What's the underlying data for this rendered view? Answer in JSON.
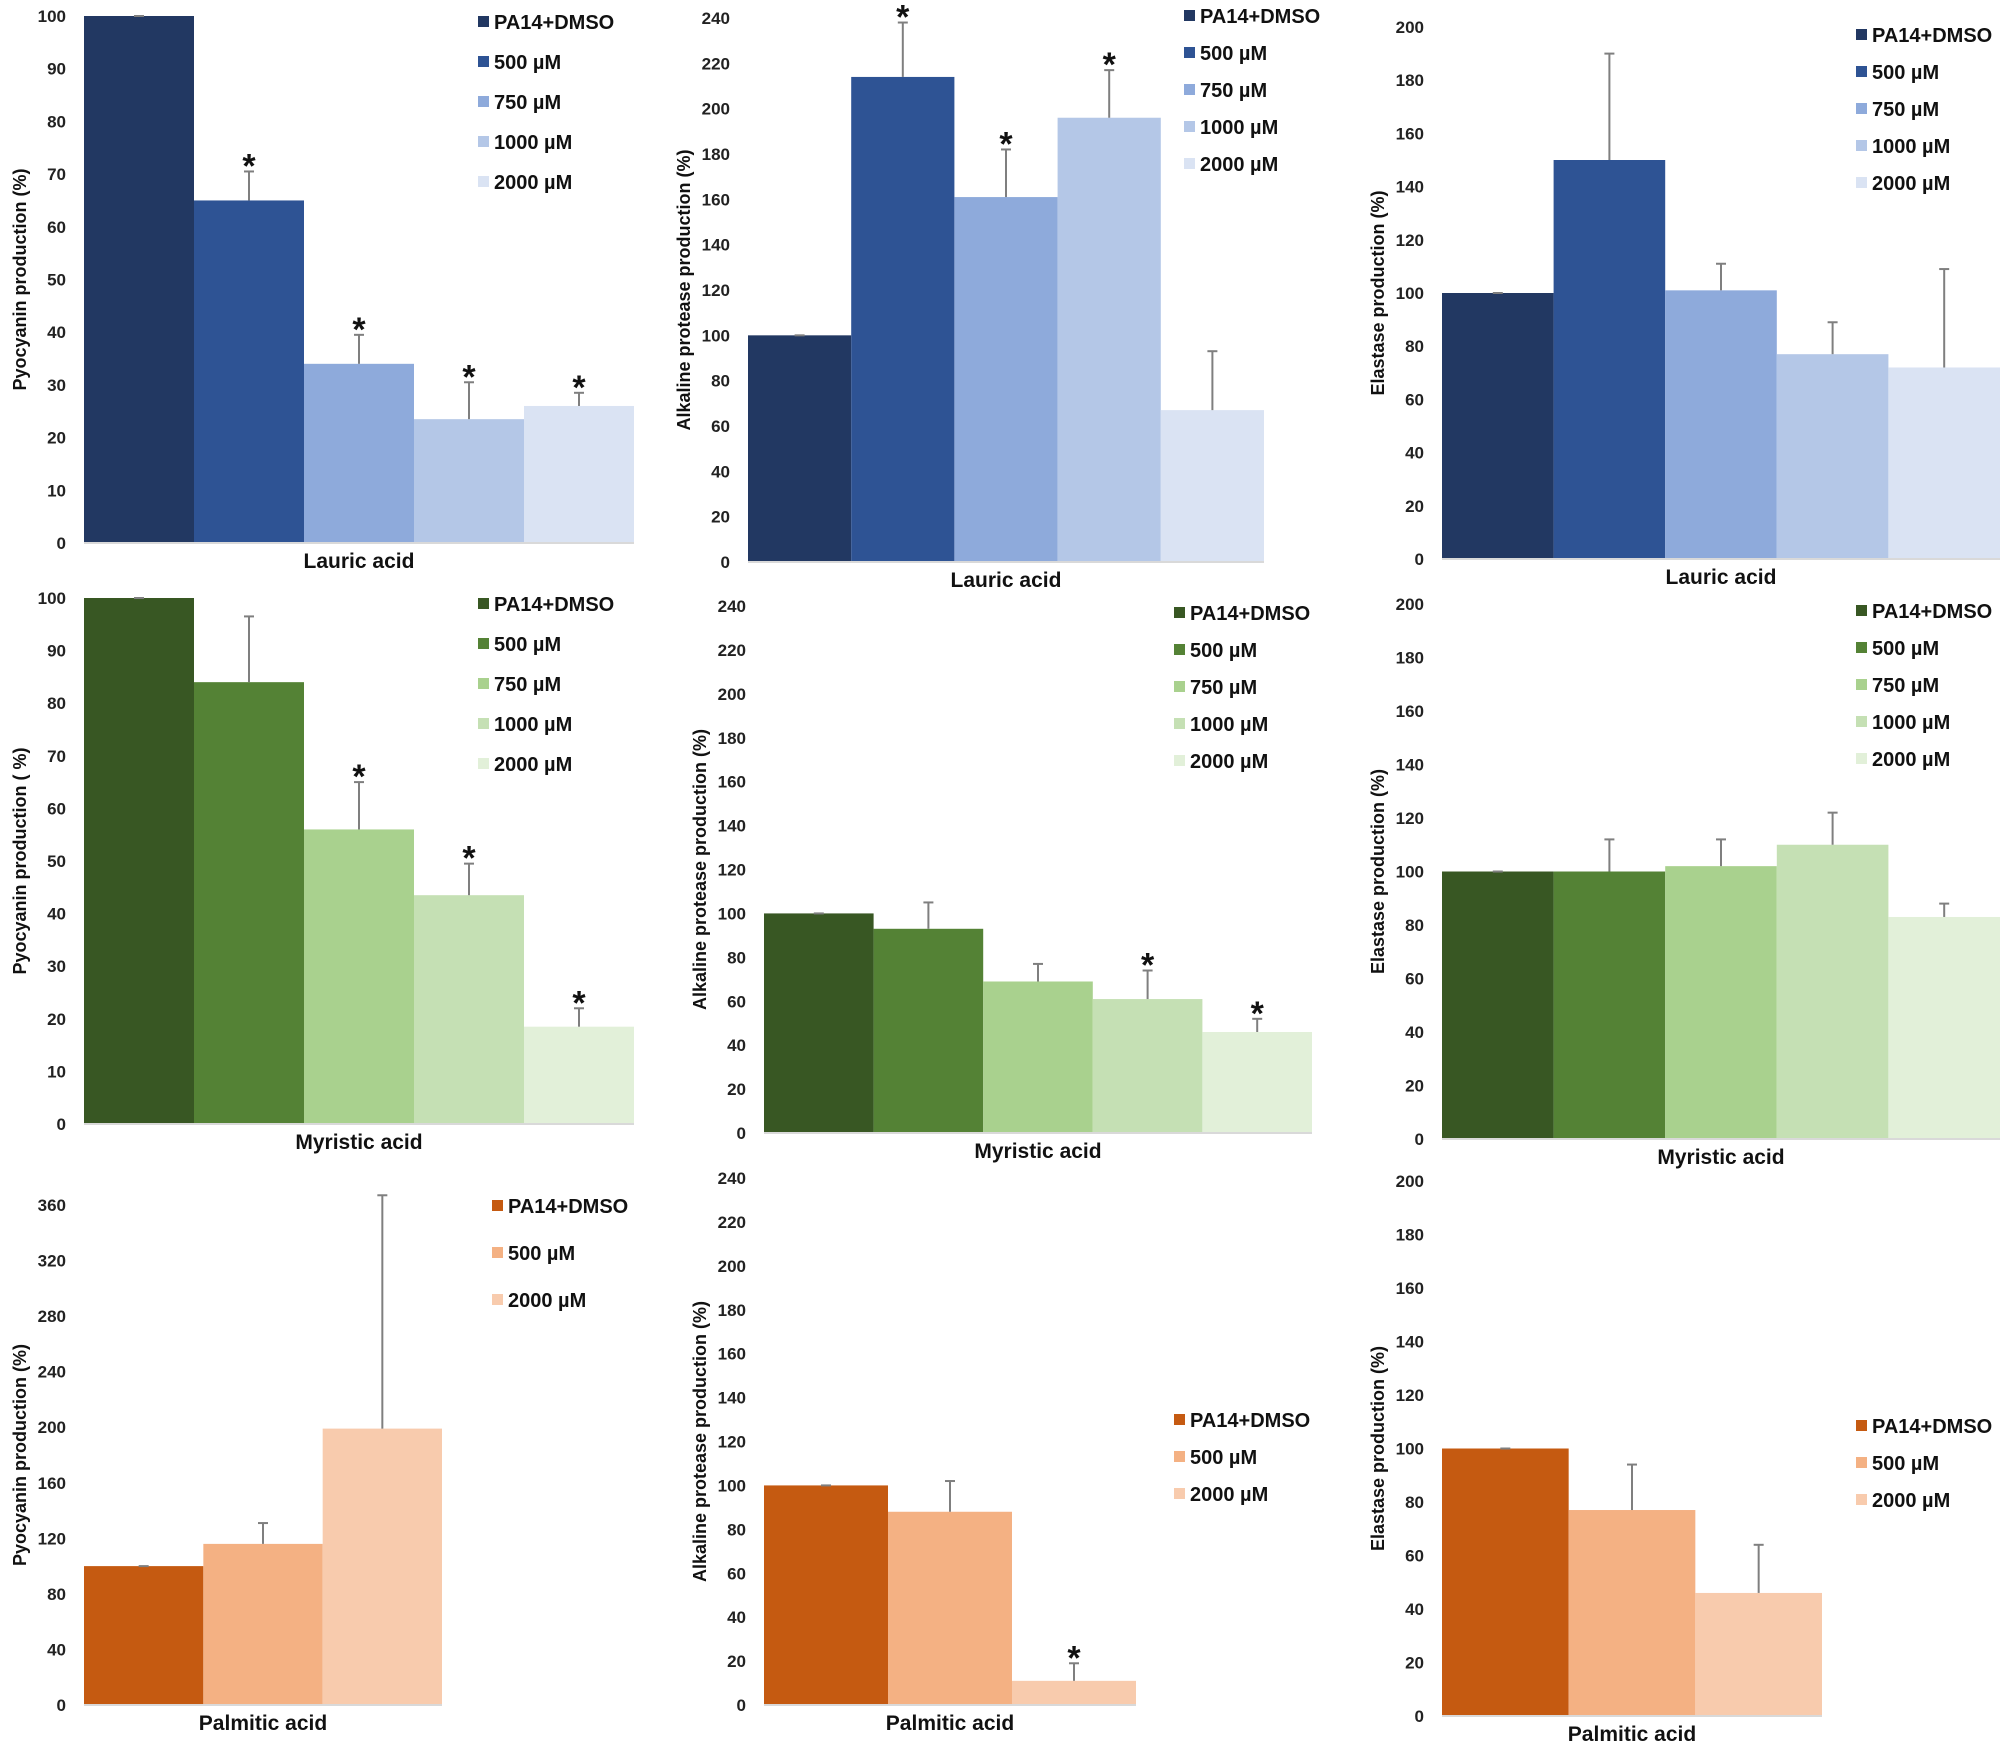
{
  "colors": {
    "blue": [
      "#223862",
      "#2e5394",
      "#8eaadb",
      "#b4c7e7",
      "#dae3f3"
    ],
    "green": [
      "#385723",
      "#548235",
      "#a9d18e",
      "#c5e0b4",
      "#e2f0d9"
    ],
    "orange": [
      "#c55a11",
      "#f4b183",
      "#f8cbad"
    ]
  },
  "chart_data": [
    {
      "type": "bar",
      "title": "",
      "ylabel": "Pyocyanin production (%)",
      "xlabel": "Lauric acid",
      "ylim": [
        0,
        100
      ],
      "yticks": [
        0,
        10,
        20,
        30,
        40,
        50,
        60,
        70,
        80,
        90,
        100
      ],
      "palette": "blue",
      "legend": [
        "PA14+DMSO",
        "500 µM",
        "750 µM",
        "1000 µM",
        "2000 µM"
      ],
      "values": [
        100,
        65,
        34,
        23.5,
        26
      ],
      "errors": [
        0,
        5.5,
        5.5,
        7,
        2.5
      ],
      "significance": [
        "",
        "*",
        "*",
        "*",
        "*"
      ]
    },
    {
      "type": "bar",
      "title": "",
      "ylabel": "Alkaline protease production (%)",
      "xlabel": "Lauric acid",
      "ylim": [
        0,
        240
      ],
      "yticks": [
        0,
        20,
        40,
        60,
        80,
        100,
        120,
        140,
        160,
        180,
        200,
        220,
        240
      ],
      "palette": "blue",
      "legend": [
        "PA14+DMSO",
        "500 µM",
        "750 µM",
        "1000 µM",
        "2000 µM"
      ],
      "values": [
        100,
        214,
        161,
        196,
        67
      ],
      "errors": [
        0,
        24,
        21,
        21,
        26
      ],
      "significance": [
        "",
        "*",
        "*",
        "*",
        ""
      ]
    },
    {
      "type": "bar",
      "title": "",
      "ylabel": "Elastase production (%)",
      "xlabel": "Lauric acid",
      "ylim": [
        0,
        200
      ],
      "yticks": [
        0,
        20,
        40,
        60,
        80,
        100,
        120,
        140,
        160,
        180,
        200
      ],
      "palette": "blue",
      "legend": [
        "PA14+DMSO",
        "500 µM",
        "750 µM",
        "1000 µM",
        "2000 µM"
      ],
      "values": [
        100,
        150,
        101,
        77,
        72
      ],
      "errors": [
        0,
        40,
        10,
        12,
        37
      ],
      "significance": [
        "",
        "",
        "",
        "",
        ""
      ]
    },
    {
      "type": "bar",
      "title": "",
      "ylabel": "Pyocyanin production ( %)",
      "xlabel": "Myristic acid",
      "ylim": [
        0,
        100
      ],
      "yticks": [
        0,
        10,
        20,
        30,
        40,
        50,
        60,
        70,
        80,
        90,
        100
      ],
      "palette": "green",
      "legend": [
        "PA14+DMSO",
        "500 µM",
        "750 µM",
        "1000 µM",
        "2000 µM"
      ],
      "values": [
        100,
        84,
        56,
        43.5,
        18.5
      ],
      "errors": [
        0,
        12.5,
        9,
        6,
        3.5
      ],
      "significance": [
        "",
        "",
        "*",
        "*",
        "*"
      ]
    },
    {
      "type": "bar",
      "title": "",
      "ylabel": "Alkaline protease production (%)",
      "xlabel": "Myristic acid",
      "ylim": [
        0,
        240
      ],
      "yticks": [
        0,
        20,
        40,
        60,
        80,
        100,
        120,
        140,
        160,
        180,
        200,
        220,
        240
      ],
      "palette": "green",
      "legend": [
        "PA14+DMSO",
        "500 µM",
        "750 µM",
        "1000 µM",
        "2000 µM"
      ],
      "values": [
        100,
        93,
        69,
        61,
        46
      ],
      "errors": [
        0,
        12,
        8,
        13,
        6
      ],
      "significance": [
        "",
        "",
        "",
        "*",
        "*"
      ]
    },
    {
      "type": "bar",
      "title": "",
      "ylabel": "Elastase production (%)",
      "xlabel": "Myristic acid",
      "ylim": [
        0,
        200
      ],
      "yticks": [
        0,
        20,
        40,
        60,
        80,
        100,
        120,
        140,
        160,
        180,
        200
      ],
      "palette": "green",
      "legend": [
        "PA14+DMSO",
        "500 µM",
        "750 µM",
        "1000 µM",
        "2000 µM"
      ],
      "values": [
        100,
        100,
        102,
        110,
        83
      ],
      "errors": [
        0,
        12,
        10,
        12,
        5
      ],
      "significance": [
        "",
        "",
        "",
        "",
        ""
      ]
    },
    {
      "type": "bar",
      "title": "",
      "ylabel": "Pyocyanin production (%)",
      "xlabel": "Palmitic acid",
      "ylim": [
        0,
        360
      ],
      "yticks": [
        0,
        40,
        80,
        120,
        160,
        200,
        240,
        280,
        320,
        360
      ],
      "palette": "orange",
      "legend": [
        "PA14+DMSO",
        "500 µM",
        "2000 µM"
      ],
      "values": [
        100,
        116,
        199
      ],
      "errors": [
        0,
        15,
        168
      ],
      "significance": [
        "",
        "",
        ""
      ]
    },
    {
      "type": "bar",
      "title": "",
      "ylabel": "Alkaline protease production (%)",
      "xlabel": "Palmitic acid",
      "ylim": [
        0,
        240
      ],
      "yticks": [
        0,
        20,
        40,
        60,
        80,
        100,
        120,
        140,
        160,
        180,
        200,
        220,
        240
      ],
      "palette": "orange",
      "legend": [
        "PA14+DMSO",
        "500 µM",
        "2000 µM"
      ],
      "values": [
        100,
        88,
        11
      ],
      "errors": [
        0,
        14,
        8
      ],
      "significance": [
        "",
        "",
        "*"
      ]
    },
    {
      "type": "bar",
      "title": "",
      "ylabel": "Elastase production (%)",
      "xlabel": "Palmitic acid",
      "ylim": [
        0,
        200
      ],
      "yticks": [
        0,
        20,
        40,
        60,
        80,
        100,
        120,
        140,
        160,
        180,
        200
      ],
      "palette": "orange",
      "legend": [
        "PA14+DMSO",
        "500 µM",
        "2000 µM"
      ],
      "values": [
        100,
        77,
        46
      ],
      "errors": [
        0,
        17,
        18
      ],
      "significance": [
        "",
        "",
        ""
      ]
    }
  ]
}
